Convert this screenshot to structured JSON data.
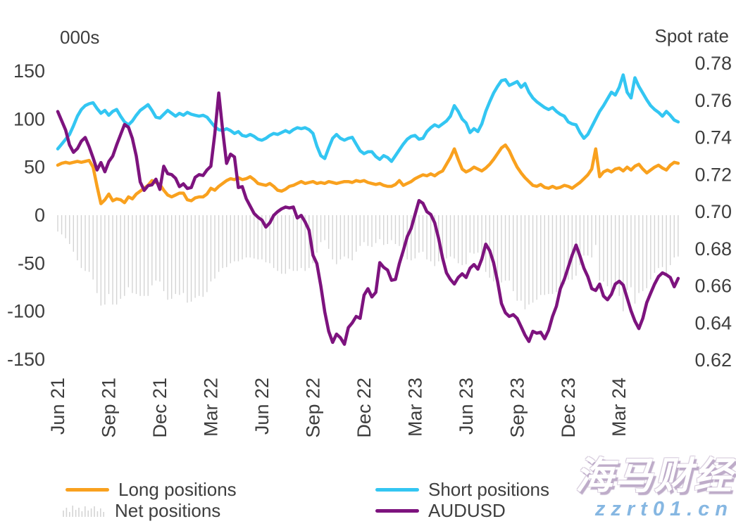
{
  "axes_titles": {
    "left": "000s",
    "right": "Spot rate"
  },
  "watermark": {
    "line1": "海马财经",
    "line2": "zzrt01.cn"
  },
  "colors": {
    "long": "#F9A11E",
    "short": "#33C6F2",
    "net": "#D4D4D4",
    "audusd": "#7D137E",
    "text": "#3E3E3E",
    "background": "#FFFFFF"
  },
  "legend": {
    "items": [
      {
        "id": "long-positions",
        "label": "Long positions",
        "color": "#F9A11E",
        "swatch": "line"
      },
      {
        "id": "net-positions",
        "label": "Net positions",
        "color": "#D4D4D4",
        "swatch": "bars"
      },
      {
        "id": "short-positions",
        "label": "Short positions",
        "color": "#33C6F2",
        "swatch": "line"
      },
      {
        "id": "audusd",
        "label": "AUDUSD",
        "color": "#7D137E",
        "swatch": "line"
      }
    ]
  },
  "chart_data": {
    "type": "mixed",
    "title": "",
    "grid": false,
    "legend_position": "bottom",
    "x_unit": "weekly observations, Jun 2021 to May 2024",
    "x_ticks": [
      {
        "week": 0,
        "label": "Jun 21"
      },
      {
        "week": 13,
        "label": "Sep 21"
      },
      {
        "week": 26,
        "label": "Dec 21"
      },
      {
        "week": 39,
        "label": "Mar 22"
      },
      {
        "week": 52,
        "label": "Jun 22"
      },
      {
        "week": 65,
        "label": "Sep 22"
      },
      {
        "week": 78,
        "label": "Dec 22"
      },
      {
        "week": 91,
        "label": "Mar 23"
      },
      {
        "week": 104,
        "label": "Jun 23"
      },
      {
        "week": 117,
        "label": "Sep 23"
      },
      {
        "week": 130,
        "label": "Dec 23"
      },
      {
        "week": 143,
        "label": "Mar 24"
      }
    ],
    "left_axis": {
      "title": "000s",
      "ticks": [
        150,
        100,
        50,
        0,
        -50,
        -100,
        -150
      ],
      "range": [
        -150,
        150
      ]
    },
    "right_axis": {
      "title": "Spot rate",
      "ticks": [
        0.78,
        0.76,
        0.74,
        0.72,
        0.7,
        0.68,
        0.66,
        0.64,
        0.62
      ],
      "range": [
        0.62,
        0.78
      ]
    },
    "series": [
      {
        "name": "Net positions",
        "type": "bar",
        "axis": "left",
        "color": "#D4D4D4",
        "values": [
          -17,
          -20,
          -24,
          -30,
          -38,
          -47,
          -55,
          -58,
          -59,
          -67,
          -81,
          -94,
          -93,
          -82,
          -93,
          -93,
          -87,
          -84,
          -75,
          -81,
          -82,
          -84,
          -84,
          -84,
          -73,
          -68,
          -69,
          -79,
          -88,
          -87,
          -82,
          -83,
          -81,
          -91,
          -90,
          -86,
          -84,
          -85,
          -80,
          -69,
          -66,
          -59,
          -55,
          -54,
          -50,
          -48,
          -48,
          -46,
          -44,
          -44,
          -45,
          -46,
          -46,
          -49,
          -50,
          -55,
          -58,
          -61,
          -61,
          -56,
          -58,
          -58,
          -55,
          -58,
          -55,
          -50,
          -39,
          -28,
          -26,
          -35,
          -46,
          -51,
          -46,
          -43,
          -45,
          -47,
          -38,
          -32,
          -28,
          -32,
          -33,
          -29,
          -25,
          -31,
          -30,
          -26,
          -30,
          -32,
          -43,
          -46,
          -47,
          -45,
          -39,
          -38,
          -46,
          -48,
          -53,
          -48,
          -49,
          -45,
          -43,
          -45,
          -50,
          -52,
          -51,
          -39,
          -40,
          -39,
          -49,
          -59,
          -65,
          -69,
          -70,
          -70,
          -68,
          -68,
          -79,
          -89,
          -89,
          -98,
          -93,
          -91,
          -88,
          -83,
          -83,
          -82,
          -82,
          -80,
          -76,
          -72,
          -67,
          -67,
          -63,
          -52,
          -42,
          -42,
          -44,
          -31,
          -68,
          -69,
          -74,
          -83,
          -77,
          -84,
          -100,
          -78,
          -75,
          -92,
          -81,
          -79,
          -76,
          -67,
          -60,
          -55,
          -54,
          -61,
          -52,
          -44,
          -43
        ]
      },
      {
        "name": "Long positions",
        "type": "line",
        "axis": "left",
        "color": "#F9A11E",
        "values": [
          52,
          54,
          55,
          54,
          55,
          56,
          55,
          56,
          57,
          50,
          30,
          12,
          16,
          22,
          15,
          17,
          16,
          13,
          19,
          17,
          22,
          25,
          28,
          31,
          36,
          34,
          32,
          26,
          21,
          19,
          21,
          23,
          23,
          16,
          15,
          18,
          19,
          19,
          22,
          28,
          26,
          30,
          33,
          36,
          38,
          37,
          39,
          37,
          38,
          40,
          37,
          33,
          32,
          31,
          33,
          30,
          26,
          25,
          27,
          30,
          31,
          33,
          35,
          33,
          34,
          35,
          33,
          34,
          33,
          35,
          34,
          33,
          34,
          35,
          35,
          34,
          36,
          35,
          36,
          34,
          33,
          32,
          33,
          31,
          30,
          30,
          32,
          36,
          31,
          33,
          35,
          38,
          40,
          42,
          41,
          43,
          41,
          44,
          46,
          53,
          60,
          69,
          58,
          48,
          45,
          47,
          50,
          48,
          46,
          49,
          53,
          58,
          64,
          70,
          73,
          67,
          58,
          50,
          44,
          39,
          35,
          31,
          30,
          32,
          29,
          28,
          30,
          28,
          29,
          31,
          30,
          28,
          31,
          34,
          38,
          42,
          48,
          69,
          40,
          45,
          47,
          45,
          48,
          49,
          46,
          50,
          47,
          51,
          53,
          48,
          44,
          47,
          50,
          52,
          49,
          47,
          52,
          55,
          54
        ]
      },
      {
        "name": "Short positions",
        "type": "line",
        "axis": "left",
        "color": "#33C6F2",
        "values": [
          69,
          74,
          79,
          84,
          93,
          103,
          110,
          114,
          116,
          117,
          111,
          106,
          109,
          104,
          108,
          110,
          103,
          97,
          94,
          98,
          104,
          109,
          112,
          115,
          109,
          102,
          101,
          105,
          109,
          106,
          103,
          106,
          104,
          107,
          105,
          104,
          103,
          104,
          102,
          97,
          92,
          89,
          88,
          90,
          88,
          85,
          87,
          83,
          82,
          84,
          82,
          79,
          78,
          80,
          83,
          85,
          84,
          86,
          88,
          86,
          89,
          91,
          90,
          91,
          89,
          85,
          72,
          62,
          59,
          70,
          80,
          84,
          80,
          78,
          80,
          81,
          74,
          67,
          64,
          66,
          66,
          61,
          58,
          62,
          60,
          56,
          62,
          68,
          74,
          79,
          82,
          83,
          79,
          80,
          87,
          91,
          94,
          92,
          95,
          98,
          103,
          114,
          108,
          100,
          96,
          86,
          90,
          87,
          95,
          108,
          118,
          127,
          134,
          140,
          141,
          135,
          137,
          139,
          133,
          137,
          128,
          122,
          118,
          115,
          112,
          110,
          112,
          108,
          105,
          103,
          97,
          95,
          94,
          86,
          80,
          84,
          92,
          100,
          108,
          114,
          121,
          128,
          125,
          133,
          146,
          128,
          122,
          143,
          134,
          127,
          120,
          114,
          110,
          107,
          103,
          108,
          104,
          99,
          97
        ]
      },
      {
        "name": "AUDUSD",
        "type": "line",
        "axis": "right",
        "color": "#7D137E",
        "values": [
          0.754,
          0.749,
          0.744,
          0.736,
          0.732,
          0.734,
          0.738,
          0.74,
          0.735,
          0.729,
          0.7225,
          0.7265,
          0.7215,
          0.727,
          0.73,
          0.736,
          0.7415,
          0.747,
          0.7455,
          0.7395,
          0.73,
          0.716,
          0.7115,
          0.714,
          0.7145,
          0.7175,
          0.712,
          0.7245,
          0.7205,
          0.72,
          0.718,
          0.7135,
          0.715,
          0.7125,
          0.713,
          0.7185,
          0.72,
          0.7195,
          0.7225,
          0.7245,
          0.742,
          0.764,
          0.744,
          0.726,
          0.731,
          0.7295,
          0.713,
          0.7135,
          0.707,
          0.703,
          0.699,
          0.697,
          0.6955,
          0.6917,
          0.694,
          0.698,
          0.7,
          0.7015,
          0.7025,
          0.702,
          0.7025,
          0.6966,
          0.698,
          0.6945,
          0.69,
          0.6765,
          0.672,
          0.66,
          0.646,
          0.6355,
          0.6295,
          0.634,
          0.632,
          0.6285,
          0.6375,
          0.64,
          0.6435,
          0.6425,
          0.655,
          0.6585,
          0.654,
          0.6565,
          0.6725,
          0.67,
          0.6685,
          0.663,
          0.6635,
          0.672,
          0.679,
          0.6865,
          0.691,
          0.6985,
          0.706,
          0.7045,
          0.7,
          0.6985,
          0.694,
          0.6855,
          0.675,
          0.667,
          0.6635,
          0.661,
          0.6645,
          0.6665,
          0.6645,
          0.6695,
          0.6715,
          0.669,
          0.6745,
          0.6825,
          0.679,
          0.6725,
          0.6625,
          0.6505,
          0.6455,
          0.6435,
          0.6445,
          0.6425,
          0.638,
          0.6335,
          0.63,
          0.6355,
          0.6345,
          0.635,
          0.6315,
          0.636,
          0.6435,
          0.649,
          0.6585,
          0.6635,
          0.67,
          0.6765,
          0.682,
          0.676,
          0.6695,
          0.665,
          0.6585,
          0.6575,
          0.661,
          0.6545,
          0.6525,
          0.6555,
          0.661,
          0.6625,
          0.6605,
          0.6535,
          0.6465,
          0.641,
          0.637,
          0.6425,
          0.651,
          0.656,
          0.661,
          0.665,
          0.667,
          0.666,
          0.6645,
          0.6595,
          0.664
        ]
      }
    ]
  }
}
